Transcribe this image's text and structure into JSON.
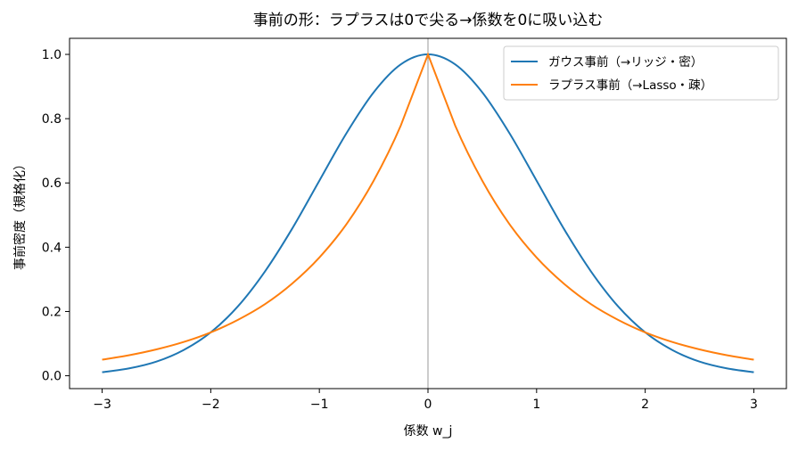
{
  "chart_data": {
    "type": "line",
    "title": "事前の形：ラプラスは0で尖る→係数を0に吸い込む",
    "xlabel": "係数 w_j",
    "ylabel": "事前密度（規格化）",
    "xlim": [
      -3.3,
      3.3
    ],
    "ylim": [
      -0.04,
      1.05
    ],
    "xticks": [
      -3,
      -2,
      -1,
      0,
      1,
      2,
      3
    ],
    "xtick_labels": [
      "−3",
      "−2",
      "−1",
      "0",
      "1",
      "2",
      "3"
    ],
    "yticks": [
      0.0,
      0.2,
      0.4,
      0.6,
      0.8,
      1.0
    ],
    "ytick_labels": [
      "0.0",
      "0.2",
      "0.4",
      "0.6",
      "0.8",
      "1.0"
    ],
    "grid": false,
    "legend_position": "top-right",
    "vline_x": 0,
    "series": [
      {
        "name": "ガウス事前（→リッジ・密）",
        "color": "#1f77b4",
        "x": [
          -3,
          -2.75,
          -2.5,
          -2.25,
          -2,
          -1.75,
          -1.5,
          -1.25,
          -1,
          -0.75,
          -0.5,
          -0.25,
          0,
          0.25,
          0.5,
          0.75,
          1,
          1.25,
          1.5,
          1.75,
          2,
          2.25,
          2.5,
          2.75,
          3
        ],
        "y": [
          0.011,
          0.023,
          0.044,
          0.08,
          0.135,
          0.216,
          0.325,
          0.458,
          0.607,
          0.755,
          0.882,
          0.969,
          1.0,
          0.969,
          0.882,
          0.755,
          0.607,
          0.458,
          0.325,
          0.216,
          0.135,
          0.08,
          0.044,
          0.023,
          0.011
        ]
      },
      {
        "name": "ラプラス事前（→Lasso・疎）",
        "color": "#ff7f0e",
        "x": [
          -3,
          -2.75,
          -2.5,
          -2.25,
          -2,
          -1.75,
          -1.5,
          -1.25,
          -1,
          -0.75,
          -0.5,
          -0.25,
          0,
          0.25,
          0.5,
          0.75,
          1,
          1.25,
          1.5,
          1.75,
          2,
          2.25,
          2.5,
          2.75,
          3
        ],
        "y": [
          0.05,
          0.064,
          0.082,
          0.105,
          0.135,
          0.174,
          0.223,
          0.287,
          0.368,
          0.472,
          0.607,
          0.779,
          1.0,
          0.779,
          0.607,
          0.472,
          0.368,
          0.287,
          0.223,
          0.174,
          0.135,
          0.105,
          0.082,
          0.064,
          0.05
        ]
      }
    ]
  }
}
